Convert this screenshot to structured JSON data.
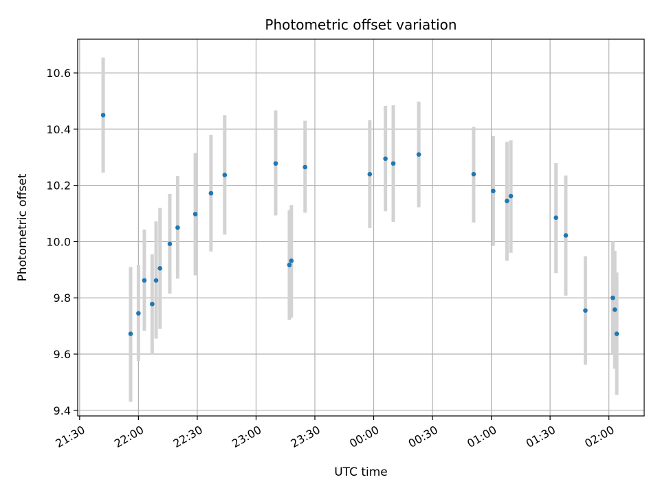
{
  "chart_data": {
    "type": "scatter",
    "title": "Photometric offset variation",
    "xlabel": "UTC time",
    "ylabel": "Photometric offset",
    "x_tick_labels": [
      "21:30",
      "22:00",
      "22:30",
      "23:00",
      "23:30",
      "00:00",
      "00:30",
      "01:00",
      "01:30",
      "02:00"
    ],
    "y_tick_labels": [
      "9.4",
      "9.6",
      "9.8",
      "10.0",
      "10.2",
      "10.4",
      "10.6"
    ],
    "x_range": [
      "21:29",
      "02:18"
    ],
    "ylim": [
      9.38,
      10.72
    ],
    "grid": true,
    "colors": {
      "point": "#1f77b4",
      "errorbar": "#d3d3d3",
      "grid": "#b0b0b0"
    },
    "points": [
      {
        "time": "21:42",
        "y": 10.45,
        "ylow": 10.245,
        "yhigh": 10.655
      },
      {
        "time": "21:56",
        "y": 9.672,
        "ylow": 9.43,
        "yhigh": 9.91
      },
      {
        "time": "22:00",
        "y": 9.745,
        "ylow": 9.575,
        "yhigh": 9.918
      },
      {
        "time": "22:03",
        "y": 9.862,
        "ylow": 9.683,
        "yhigh": 10.043
      },
      {
        "time": "22:07",
        "y": 9.778,
        "ylow": 9.598,
        "yhigh": 9.955
      },
      {
        "time": "22:09",
        "y": 9.862,
        "ylow": 9.655,
        "yhigh": 10.072
      },
      {
        "time": "22:11",
        "y": 9.905,
        "ylow": 9.69,
        "yhigh": 10.12
      },
      {
        "time": "22:16",
        "y": 9.992,
        "ylow": 9.815,
        "yhigh": 10.17
      },
      {
        "time": "22:20",
        "y": 10.05,
        "ylow": 9.868,
        "yhigh": 10.233
      },
      {
        "time": "22:29",
        "y": 10.098,
        "ylow": 9.88,
        "yhigh": 10.315
      },
      {
        "time": "22:37",
        "y": 10.172,
        "ylow": 9.965,
        "yhigh": 10.38
      },
      {
        "time": "22:44",
        "y": 10.237,
        "ylow": 10.025,
        "yhigh": 10.45
      },
      {
        "time": "23:10",
        "y": 10.278,
        "ylow": 10.093,
        "yhigh": 10.467
      },
      {
        "time": "23:17",
        "y": 9.917,
        "ylow": 9.722,
        "yhigh": 10.112
      },
      {
        "time": "23:18",
        "y": 9.932,
        "ylow": 9.73,
        "yhigh": 10.13
      },
      {
        "time": "23:25",
        "y": 10.265,
        "ylow": 10.103,
        "yhigh": 10.43
      },
      {
        "time": "23:58",
        "y": 10.24,
        "ylow": 10.048,
        "yhigh": 10.432
      },
      {
        "time": "00:06",
        "y": 10.295,
        "ylow": 10.108,
        "yhigh": 10.483
      },
      {
        "time": "00:10",
        "y": 10.278,
        "ylow": 10.07,
        "yhigh": 10.485
      },
      {
        "time": "00:23",
        "y": 10.31,
        "ylow": 10.122,
        "yhigh": 10.498
      },
      {
        "time": "00:51",
        "y": 10.24,
        "ylow": 10.068,
        "yhigh": 10.408
      },
      {
        "time": "01:01",
        "y": 10.18,
        "ylow": 9.985,
        "yhigh": 10.375
      },
      {
        "time": "01:08",
        "y": 10.145,
        "ylow": 9.932,
        "yhigh": 10.355
      },
      {
        "time": "01:10",
        "y": 10.162,
        "ylow": 9.96,
        "yhigh": 10.36
      },
      {
        "time": "01:33",
        "y": 10.085,
        "ylow": 9.888,
        "yhigh": 10.28
      },
      {
        "time": "01:38",
        "y": 10.022,
        "ylow": 9.808,
        "yhigh": 10.235
      },
      {
        "time": "01:48",
        "y": 9.755,
        "ylow": 9.562,
        "yhigh": 9.948
      },
      {
        "time": "02:02",
        "y": 9.8,
        "ylow": 9.6,
        "yhigh": 10.0
      },
      {
        "time": "02:03",
        "y": 9.758,
        "ylow": 9.548,
        "yhigh": 9.967
      },
      {
        "time": "02:04",
        "y": 9.672,
        "ylow": 9.455,
        "yhigh": 9.89
      }
    ]
  }
}
